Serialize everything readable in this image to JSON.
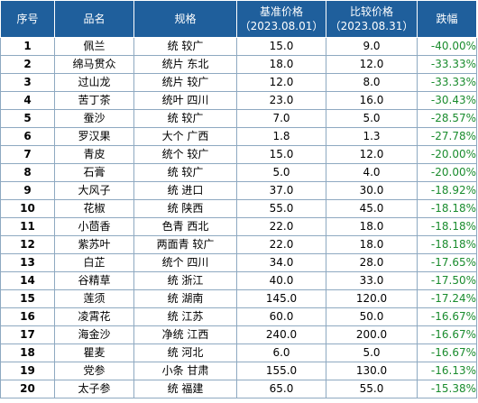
{
  "table": {
    "headers": {
      "idx": "序号",
      "name": "品名",
      "spec": "规格",
      "base_price_line1": "基准价格",
      "base_price_line2": "（2023.08.01）",
      "cmp_price_line1": "比较价格",
      "cmp_price_line2": "（2023.08.31）",
      "change": "跌幅"
    },
    "rows": [
      {
        "idx": "1",
        "name": "佩兰",
        "spec": "统 较广",
        "base": "15.0",
        "cmp": "9.0",
        "change": "-40.00%"
      },
      {
        "idx": "2",
        "name": "绵马贯众",
        "spec": "统片 东北",
        "base": "18.0",
        "cmp": "12.0",
        "change": "-33.33%"
      },
      {
        "idx": "3",
        "name": "过山龙",
        "spec": "统片 较广",
        "base": "12.0",
        "cmp": "8.0",
        "change": "-33.33%"
      },
      {
        "idx": "4",
        "name": "苦丁茶",
        "spec": "统叶 四川",
        "base": "23.0",
        "cmp": "16.0",
        "change": "-30.43%"
      },
      {
        "idx": "5",
        "name": "蚕沙",
        "spec": "统 较广",
        "base": "7.0",
        "cmp": "5.0",
        "change": "-28.57%"
      },
      {
        "idx": "6",
        "name": "罗汉果",
        "spec": "大个 广西",
        "base": "1.8",
        "cmp": "1.3",
        "change": "-27.78%"
      },
      {
        "idx": "7",
        "name": "青皮",
        "spec": "统个 较广",
        "base": "15.0",
        "cmp": "12.0",
        "change": "-20.00%"
      },
      {
        "idx": "8",
        "name": "石膏",
        "spec": "统 较广",
        "base": "5.0",
        "cmp": "4.0",
        "change": "-20.00%"
      },
      {
        "idx": "9",
        "name": "大风子",
        "spec": "统 进口",
        "base": "37.0",
        "cmp": "30.0",
        "change": "-18.92%"
      },
      {
        "idx": "10",
        "name": "花椒",
        "spec": "统 陕西",
        "base": "55.0",
        "cmp": "45.0",
        "change": "-18.18%"
      },
      {
        "idx": "11",
        "name": "小茴香",
        "spec": "色青 西北",
        "base": "22.0",
        "cmp": "18.0",
        "change": "-18.18%"
      },
      {
        "idx": "12",
        "name": "紫苏叶",
        "spec": "两面青 较广",
        "base": "22.0",
        "cmp": "18.0",
        "change": "-18.18%"
      },
      {
        "idx": "13",
        "name": "白芷",
        "spec": "统个 四川",
        "base": "34.0",
        "cmp": "28.0",
        "change": "-17.65%"
      },
      {
        "idx": "14",
        "name": "谷精草",
        "spec": "统 浙江",
        "base": "40.0",
        "cmp": "33.0",
        "change": "-17.50%"
      },
      {
        "idx": "15",
        "name": "莲须",
        "spec": "统 湖南",
        "base": "145.0",
        "cmp": "120.0",
        "change": "-17.24%"
      },
      {
        "idx": "16",
        "name": "凌霄花",
        "spec": "统 江苏",
        "base": "60.0",
        "cmp": "50.0",
        "change": "-16.67%"
      },
      {
        "idx": "17",
        "name": "海金沙",
        "spec": "净统 江西",
        "base": "240.0",
        "cmp": "200.0",
        "change": "-16.67%"
      },
      {
        "idx": "18",
        "name": "瞿麦",
        "spec": "统 河北",
        "base": "6.0",
        "cmp": "5.0",
        "change": "-16.67%"
      },
      {
        "idx": "19",
        "name": "党参",
        "spec": "小条 甘肃",
        "base": "155.0",
        "cmp": "130.0",
        "change": "-16.13%"
      },
      {
        "idx": "20",
        "name": "太子参",
        "spec": "统 福建",
        "base": "65.0",
        "cmp": "55.0",
        "change": "-15.38%"
      }
    ]
  }
}
